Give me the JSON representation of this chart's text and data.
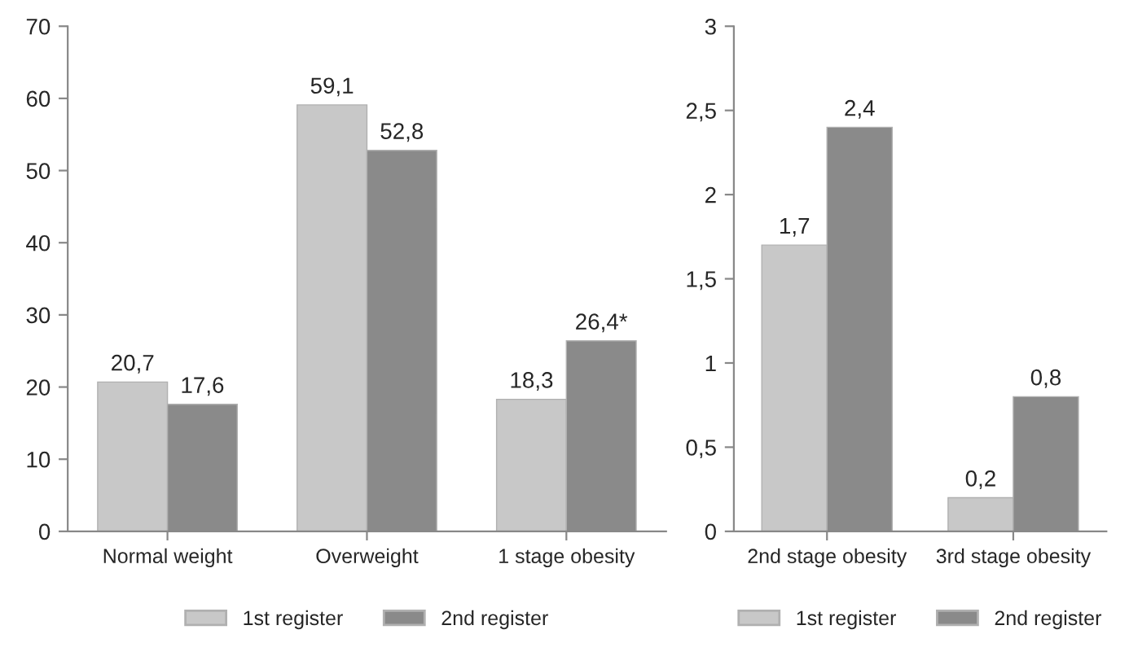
{
  "chart_data": [
    {
      "type": "bar",
      "categories": [
        "Normal weight",
        "Overweight",
        "1 stage obesity"
      ],
      "series": [
        {
          "name": "1st register",
          "color": "#c8c8c8",
          "values": [
            20.7,
            59.1,
            18.3
          ],
          "value_labels": [
            "20,7",
            "59,1",
            "18,3"
          ]
        },
        {
          "name": "2nd register",
          "color": "#8a8a8a",
          "values": [
            17.6,
            52.8,
            26.4
          ],
          "value_labels": [
            "17,6",
            "52,8",
            "26,4*"
          ]
        }
      ],
      "ylim": [
        0,
        70
      ],
      "yticks": [
        0,
        10,
        20,
        30,
        40,
        50,
        60,
        70
      ],
      "grid": false,
      "legend": "bottom"
    },
    {
      "type": "bar",
      "categories": [
        "2nd stage obesity",
        "3rd stage obesity"
      ],
      "series": [
        {
          "name": "1st register",
          "color": "#c8c8c8",
          "values": [
            1.7,
            0.2
          ],
          "value_labels": [
            "1,7",
            "0,2"
          ]
        },
        {
          "name": "2nd register",
          "color": "#8a8a8a",
          "values": [
            2.4,
            0.8
          ],
          "value_labels": [
            "2,4",
            "0,8"
          ]
        }
      ],
      "ylim": [
        0,
        3
      ],
      "yticks": [
        0,
        {
          "value": 0.5,
          "label": "0,5"
        },
        1,
        {
          "value": 1.5,
          "label": "1,5"
        },
        2,
        {
          "value": 2.5,
          "label": "2,5"
        },
        3
      ],
      "grid": false,
      "legend": "bottom"
    }
  ]
}
